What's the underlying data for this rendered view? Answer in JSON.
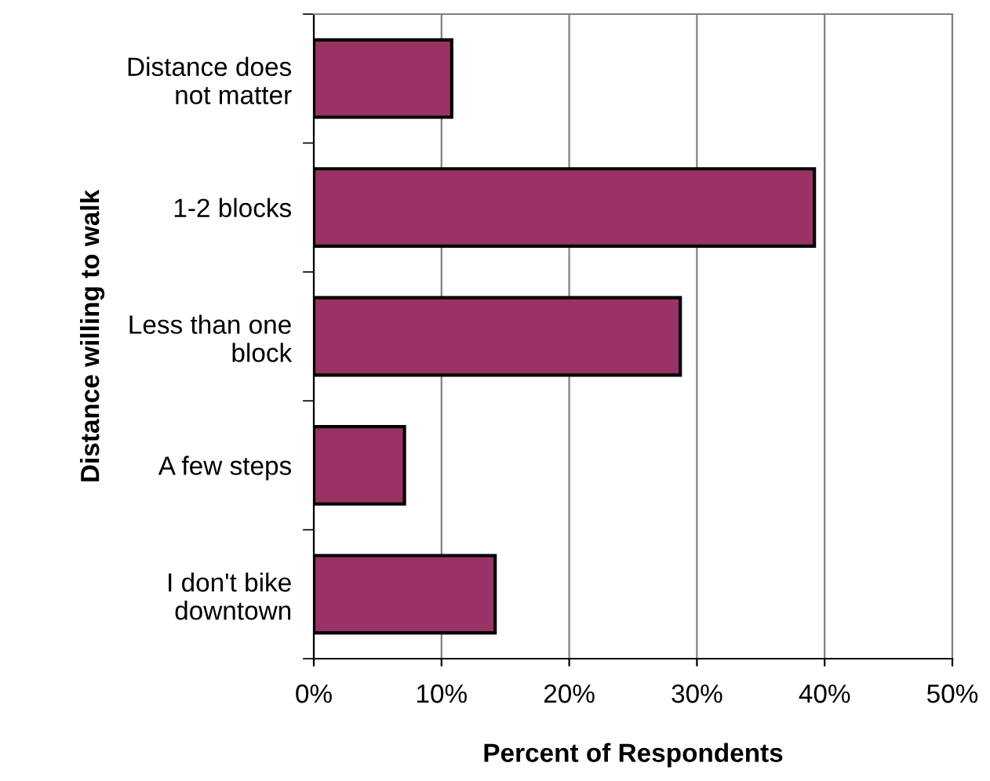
{
  "chart_data": {
    "type": "bar",
    "orientation": "horizontal",
    "categories": [
      "Distance does\nnot matter",
      "1-2 blocks",
      "Less than one\nblock",
      "A few steps",
      "I don't bike\ndowntown"
    ],
    "values": [
      10.8,
      39.2,
      28.7,
      7.1,
      14.2
    ],
    "color": "#993366",
    "xlim": [
      0,
      50
    ],
    "xticks": [
      {
        "value": 0,
        "label": "0%"
      },
      {
        "value": 10,
        "label": "10%"
      },
      {
        "value": 20,
        "label": "20%"
      },
      {
        "value": 30,
        "label": "30%"
      },
      {
        "value": 40,
        "label": "40%"
      },
      {
        "value": 50,
        "label": "50%"
      }
    ],
    "xlabel": "Percent of Respondents",
    "ylabel": "Distance willing to walk",
    "grid": "x",
    "legend": false
  }
}
